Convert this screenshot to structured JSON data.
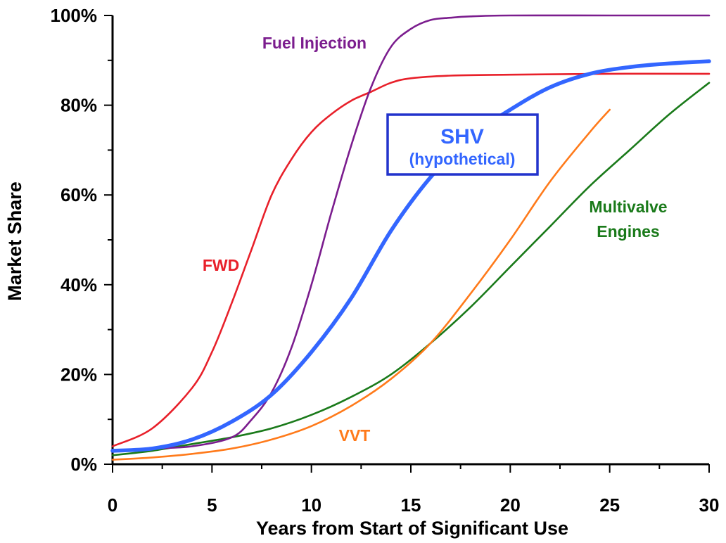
{
  "chart_data": {
    "type": "line",
    "xlabel": "Years from Start of Significant Use",
    "ylabel": "Market Share",
    "xlim": [
      0,
      30
    ],
    "ylim": [
      0,
      100
    ],
    "x_ticks": [
      "0",
      "5",
      "10",
      "15",
      "20",
      "25",
      "30"
    ],
    "y_ticks": [
      "0%",
      "20%",
      "40%",
      "60%",
      "80%",
      "100%"
    ],
    "grid": false,
    "legend": "inline labels",
    "series": [
      {
        "name": "FWD",
        "label_lines": [
          "FWD"
        ],
        "color": "#e8202a",
        "x": [
          0,
          2,
          4,
          5,
          6,
          7,
          8,
          9,
          10,
          11,
          12,
          13,
          14,
          15,
          17,
          20,
          25,
          30
        ],
        "y": [
          4,
          8,
          17,
          25,
          36,
          48,
          60,
          68,
          74,
          78,
          81,
          83,
          85,
          86,
          86.6,
          86.8,
          87,
          87
        ]
      },
      {
        "name": "Fuel Injection",
        "label_lines": [
          "Fuel Injection"
        ],
        "color": "#7b1d8e",
        "x": [
          0,
          2,
          4,
          6,
          7,
          8,
          9,
          10,
          11,
          12,
          13,
          14,
          15,
          16,
          17,
          18,
          20,
          25,
          30
        ],
        "y": [
          3,
          3.5,
          4,
          6,
          10,
          16,
          26,
          40,
          56,
          71,
          84,
          93,
          97,
          99,
          99.5,
          99.8,
          100,
          100,
          100
        ]
      },
      {
        "name": "SHV",
        "label_lines": [
          "SHV",
          "(hypothetical)"
        ],
        "color": "#3366ff",
        "x": [
          0,
          2,
          4,
          6,
          8,
          10,
          12,
          14,
          16,
          18,
          20,
          22,
          24,
          26,
          28,
          30
        ],
        "y": [
          3,
          3.5,
          5.5,
          9.5,
          15.5,
          25,
          37,
          52,
          64,
          73,
          79,
          84,
          87,
          88.5,
          89.3,
          89.8
        ]
      },
      {
        "name": "Multivalve Engines",
        "label_lines": [
          "Multivalve",
          "Engines"
        ],
        "color": "#1a7a1a",
        "x": [
          0,
          2,
          4,
          6,
          8,
          10,
          12,
          14,
          16,
          18,
          20,
          22,
          24,
          26,
          28,
          30
        ],
        "y": [
          2,
          3,
          4.5,
          6,
          8,
          11,
          15,
          20,
          27,
          35,
          44,
          53,
          62,
          70,
          78,
          85
        ]
      },
      {
        "name": "VVT",
        "label_lines": [
          "VVT"
        ],
        "color": "#ff7a1a",
        "x": [
          0,
          2,
          4,
          6,
          8,
          10,
          12,
          14,
          16,
          18,
          20,
          22,
          24,
          25
        ],
        "y": [
          1,
          1.5,
          2.3,
          3.5,
          5.5,
          8.5,
          13,
          19,
          27,
          38,
          50,
          63,
          74,
          79
        ]
      }
    ]
  }
}
